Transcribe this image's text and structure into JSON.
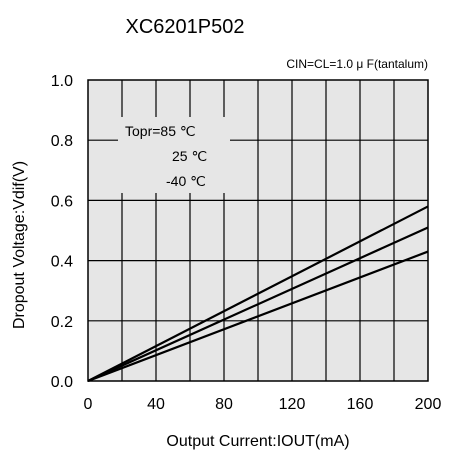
{
  "chart_data": {
    "type": "line",
    "title": "XC6201P502",
    "subtitle": "CIN=CL=1.0 μ F(tantalum)",
    "xlabel": "Output Current:IOUT(mA)",
    "ylabel": "Dropout Voltage:Vdif(V)",
    "xlim": [
      0,
      200
    ],
    "ylim": [
      0.0,
      1.0
    ],
    "x_ticks": [
      "0",
      "40",
      "80",
      "120",
      "160",
      "200"
    ],
    "y_ticks": [
      "0.0",
      "0.2",
      "0.4",
      "0.6",
      "0.8",
      "1.0"
    ],
    "grid": true,
    "legend_position": "upper-left",
    "legend_title": "Topr=85 ℃",
    "series": [
      {
        "name": "85 ℃",
        "x": [
          0,
          200
        ],
        "y": [
          0.0,
          0.58
        ]
      },
      {
        "name": "25 ℃",
        "x": [
          0,
          200
        ],
        "y": [
          0.0,
          0.51
        ]
      },
      {
        "name": "-40 ℃",
        "x": [
          0,
          200
        ],
        "y": [
          0.0,
          0.43
        ]
      }
    ],
    "legend_labels": [
      "25 ℃",
      "-40 ℃"
    ]
  },
  "colors": {
    "plot_background": "#e6e6e6",
    "line": "#000000",
    "grid": "#000000"
  }
}
